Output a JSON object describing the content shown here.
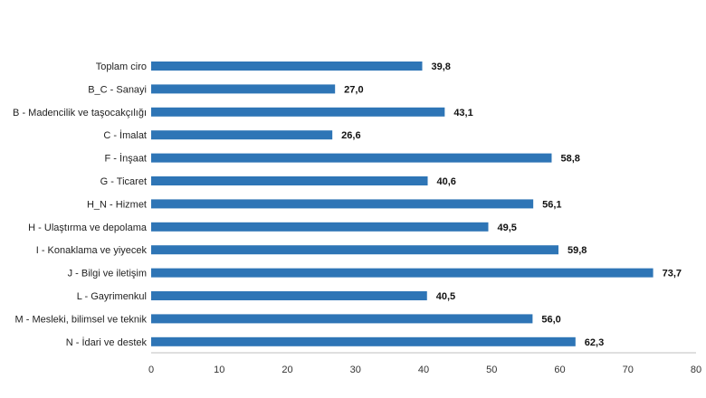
{
  "chart_data": {
    "type": "bar",
    "orientation": "horizontal",
    "categories": [
      "Toplam ciro",
      "B_C - Sanayi",
      "B - Madencilik ve taşocakçılığı",
      "C - İmalat",
      "F - İnşaat",
      "G - Ticaret",
      "H_N - Hizmet",
      "H - Ulaştırma ve depolama",
      "I - Konaklama ve yiyecek",
      "J - Bilgi ve iletişim",
      "L - Gayrimenkul",
      "M - Mesleki, bilimsel ve teknik",
      "N - İdari ve destek"
    ],
    "values": [
      39.8,
      27.0,
      43.1,
      26.6,
      58.8,
      40.6,
      56.1,
      49.5,
      59.8,
      73.7,
      40.5,
      56.0,
      62.3
    ],
    "value_labels": [
      "39,8",
      "27,0",
      "43,1",
      "26,6",
      "58,8",
      "40,6",
      "56,1",
      "49,5",
      "59,8",
      "73,7",
      "40,5",
      "56,0",
      "62,3"
    ],
    "xlim": [
      0,
      80
    ],
    "xticks": [
      "0",
      "10",
      "20",
      "30",
      "40",
      "50",
      "60",
      "70",
      "80"
    ],
    "grid": false,
    "legend": "none",
    "bar_color": "#2e75b6",
    "axis_color": "#bfbfbf"
  }
}
